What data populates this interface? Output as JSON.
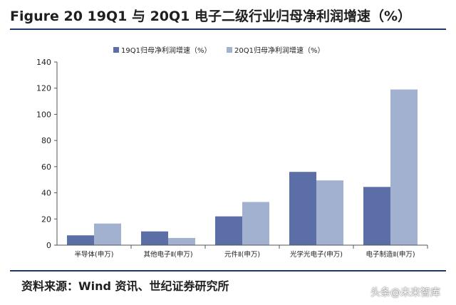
{
  "figure": {
    "title": "Figure 20 19Q1 与 20Q1 电子二级行业归母净利润增速（%）",
    "source": "资料来源：Wind 资讯、世纪证券研究所",
    "watermark": "头条@未来智库"
  },
  "chart_data": {
    "type": "bar",
    "title": "",
    "xlabel": "",
    "ylabel": "",
    "categories": [
      "半导体(申万)",
      "其他电子Ⅱ(申万)",
      "元件Ⅱ(申万)",
      "光学光电子(申万)",
      "电子制造Ⅱ(申万)"
    ],
    "series": [
      {
        "name": "19Q1归母净利润增速（%）",
        "values": [
          7.5,
          10.5,
          22,
          56,
          44.5
        ],
        "color": "#5b6ea6"
      },
      {
        "name": "20Q1归母净利润增速（%）",
        "values": [
          16.5,
          5.5,
          33,
          49.5,
          119
        ],
        "color": "#a3b1d1"
      }
    ],
    "ylim": [
      0,
      140
    ],
    "yticks": [
      0,
      20,
      40,
      60,
      80,
      100,
      120,
      140
    ],
    "grid": false,
    "legend": "top-center"
  }
}
